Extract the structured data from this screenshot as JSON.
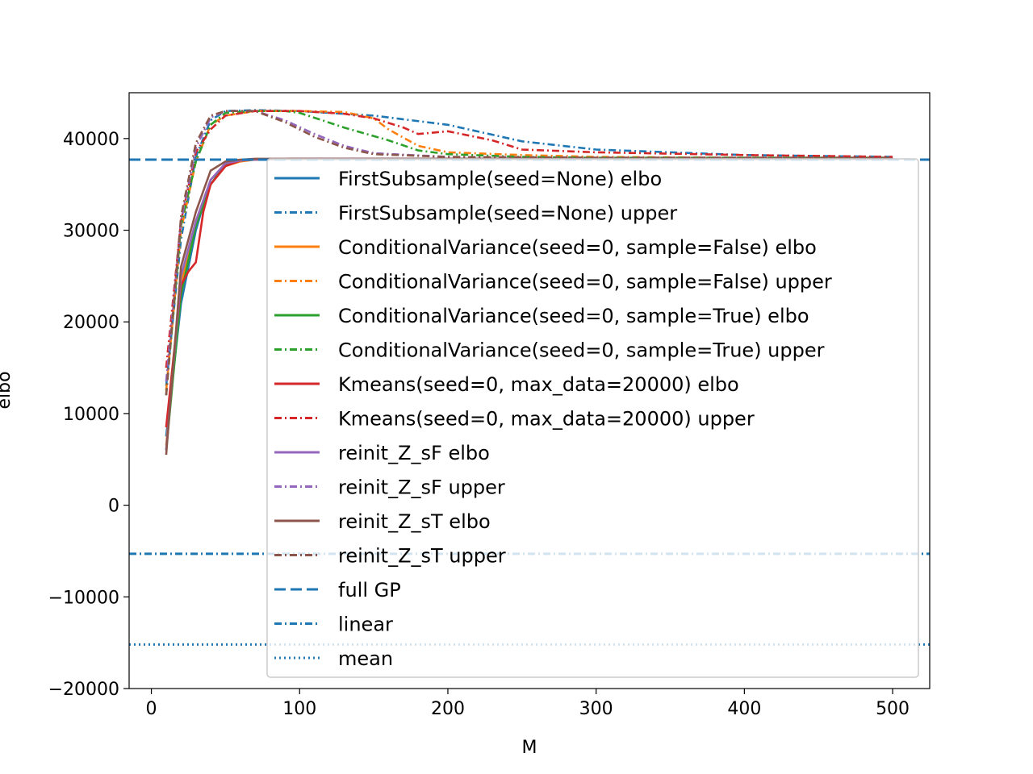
{
  "chart_data": {
    "type": "line",
    "xlabel": "M",
    "ylabel": "elbo",
    "xlim": [
      -15,
      525
    ],
    "ylim": [
      -20000,
      45000
    ],
    "xticks": [
      0,
      100,
      200,
      300,
      400,
      500
    ],
    "xtick_labels": [
      "0",
      "100",
      "200",
      "300",
      "400",
      "500"
    ],
    "yticks": [
      -20000,
      -10000,
      0,
      10000,
      20000,
      30000,
      40000
    ],
    "ytick_labels": [
      "−20000",
      "−10000",
      "0",
      "10000",
      "20000",
      "30000",
      "40000"
    ],
    "grid": false,
    "legend_position": "center-right",
    "series": [
      {
        "name": "FirstSubsample(seed=None) elbo",
        "color": "#1f77b4",
        "dash": "solid",
        "x": [
          10,
          20,
          30,
          40,
          50,
          60,
          70,
          100,
          150,
          200,
          250,
          300,
          400,
          500
        ],
        "y": [
          7500,
          22000,
          30000,
          35500,
          37200,
          37600,
          37700,
          37800,
          37800,
          37800,
          37800,
          37800,
          37800,
          37800
        ]
      },
      {
        "name": "FirstSubsample(seed=None) upper",
        "color": "#1f77b4",
        "dash": "dashdot",
        "x": [
          10,
          20,
          30,
          40,
          50,
          70,
          100,
          150,
          200,
          250,
          300,
          400,
          500
        ],
        "y": [
          13000,
          29000,
          38000,
          42000,
          43000,
          43100,
          43000,
          42500,
          41500,
          39700,
          38800,
          38200,
          38000
        ]
      },
      {
        "name": "ConditionalVariance(seed=0, sample=False) elbo",
        "color": "#ff7f0e",
        "dash": "solid",
        "x": [
          10,
          20,
          30,
          40,
          50,
          60,
          70,
          100,
          150,
          200,
          300,
          400,
          500
        ],
        "y": [
          6500,
          24000,
          31000,
          35000,
          37000,
          37500,
          37700,
          37800,
          37800,
          37800,
          37800,
          37800,
          37800
        ]
      },
      {
        "name": "ConditionalVariance(seed=0, sample=False) upper",
        "color": "#ff7f0e",
        "dash": "dashdot",
        "x": [
          10,
          20,
          30,
          40,
          50,
          70,
          100,
          130,
          150,
          160,
          180,
          200,
          250,
          300,
          400,
          500
        ],
        "y": [
          12500,
          30000,
          37500,
          41500,
          42500,
          43000,
          43000,
          42900,
          42200,
          41000,
          39200,
          38500,
          38200,
          38000,
          37900,
          37900
        ]
      },
      {
        "name": "ConditionalVariance(seed=0, sample=True) elbo",
        "color": "#2ca02c",
        "dash": "solid",
        "x": [
          10,
          20,
          30,
          40,
          50,
          60,
          70,
          100,
          150,
          200,
          300,
          400,
          500
        ],
        "y": [
          6000,
          23000,
          30500,
          35000,
          37200,
          37600,
          37700,
          37800,
          37800,
          37800,
          37800,
          37800,
          37800
        ]
      },
      {
        "name": "ConditionalVariance(seed=0, sample=True) upper",
        "color": "#2ca02c",
        "dash": "dashdot",
        "x": [
          10,
          20,
          30,
          40,
          50,
          70,
          90,
          100,
          130,
          160,
          180,
          200,
          250,
          300,
          400,
          500
        ],
        "y": [
          12000,
          30500,
          37500,
          41500,
          42800,
          43000,
          43000,
          42800,
          41200,
          39800,
          38700,
          38300,
          38000,
          37900,
          37900,
          37900
        ]
      },
      {
        "name": "Kmeans(seed=0, max_data=20000) elbo",
        "color": "#d62728",
        "dash": "solid",
        "x": [
          10,
          20,
          25,
          30,
          35,
          40,
          45,
          50,
          60,
          70,
          100,
          150,
          200,
          300,
          400,
          500
        ],
        "y": [
          8500,
          24000,
          25500,
          26500,
          32000,
          35000,
          36000,
          37000,
          37600,
          37700,
          37800,
          37800,
          37800,
          37800,
          37800,
          37800
        ]
      },
      {
        "name": "Kmeans(seed=0, max_data=20000) upper",
        "color": "#d62728",
        "dash": "dashdot",
        "x": [
          10,
          20,
          30,
          40,
          50,
          70,
          100,
          130,
          150,
          170,
          180,
          200,
          230,
          250,
          300,
          400,
          500
        ],
        "y": [
          15000,
          31000,
          38500,
          41000,
          42500,
          43000,
          43000,
          42700,
          42200,
          41200,
          40500,
          40800,
          39800,
          38800,
          38500,
          38200,
          38000
        ]
      },
      {
        "name": "reinit_Z_sF elbo",
        "color": "#9467bd",
        "dash": "solid",
        "x": [
          10,
          20,
          30,
          40,
          50,
          60,
          70,
          100,
          150,
          200,
          300,
          400,
          500
        ],
        "y": [
          6000,
          25000,
          31000,
          35500,
          37300,
          37600,
          37700,
          37800,
          37800,
          37800,
          37800,
          37800,
          37800
        ]
      },
      {
        "name": "reinit_Z_sF upper",
        "color": "#9467bd",
        "dash": "dashdot",
        "x": [
          10,
          20,
          30,
          40,
          50,
          70,
          90,
          110,
          130,
          150,
          200,
          300,
          400,
          500
        ],
        "y": [
          13500,
          31000,
          39000,
          42300,
          43000,
          43000,
          42000,
          40500,
          39200,
          38400,
          38000,
          37900,
          37900,
          37900
        ]
      },
      {
        "name": "reinit_Z_sT elbo",
        "color": "#8c564b",
        "dash": "solid",
        "x": [
          10,
          20,
          30,
          40,
          50,
          60,
          70,
          100,
          150,
          200,
          300,
          400,
          500
        ],
        "y": [
          5500,
          26000,
          32000,
          36500,
          37500,
          37700,
          37800,
          37800,
          37800,
          37800,
          37800,
          37800,
          37800
        ]
      },
      {
        "name": "reinit_Z_sT upper",
        "color": "#8c564b",
        "dash": "dashdot",
        "x": [
          10,
          20,
          30,
          40,
          50,
          70,
          90,
          110,
          130,
          150,
          200,
          300,
          400,
          500
        ],
        "y": [
          12000,
          31500,
          39500,
          42500,
          43000,
          43000,
          41800,
          40200,
          39000,
          38300,
          38000,
          37900,
          37900,
          37900
        ]
      },
      {
        "name": "full GP",
        "color": "#1f77b4",
        "dash": "dashed",
        "hline": 37700
      },
      {
        "name": "linear",
        "color": "#1f77b4",
        "dash": "dashdot",
        "hline": -5300
      },
      {
        "name": "mean",
        "color": "#1f77b4",
        "dash": "dotted",
        "hline": -15200
      }
    ]
  }
}
